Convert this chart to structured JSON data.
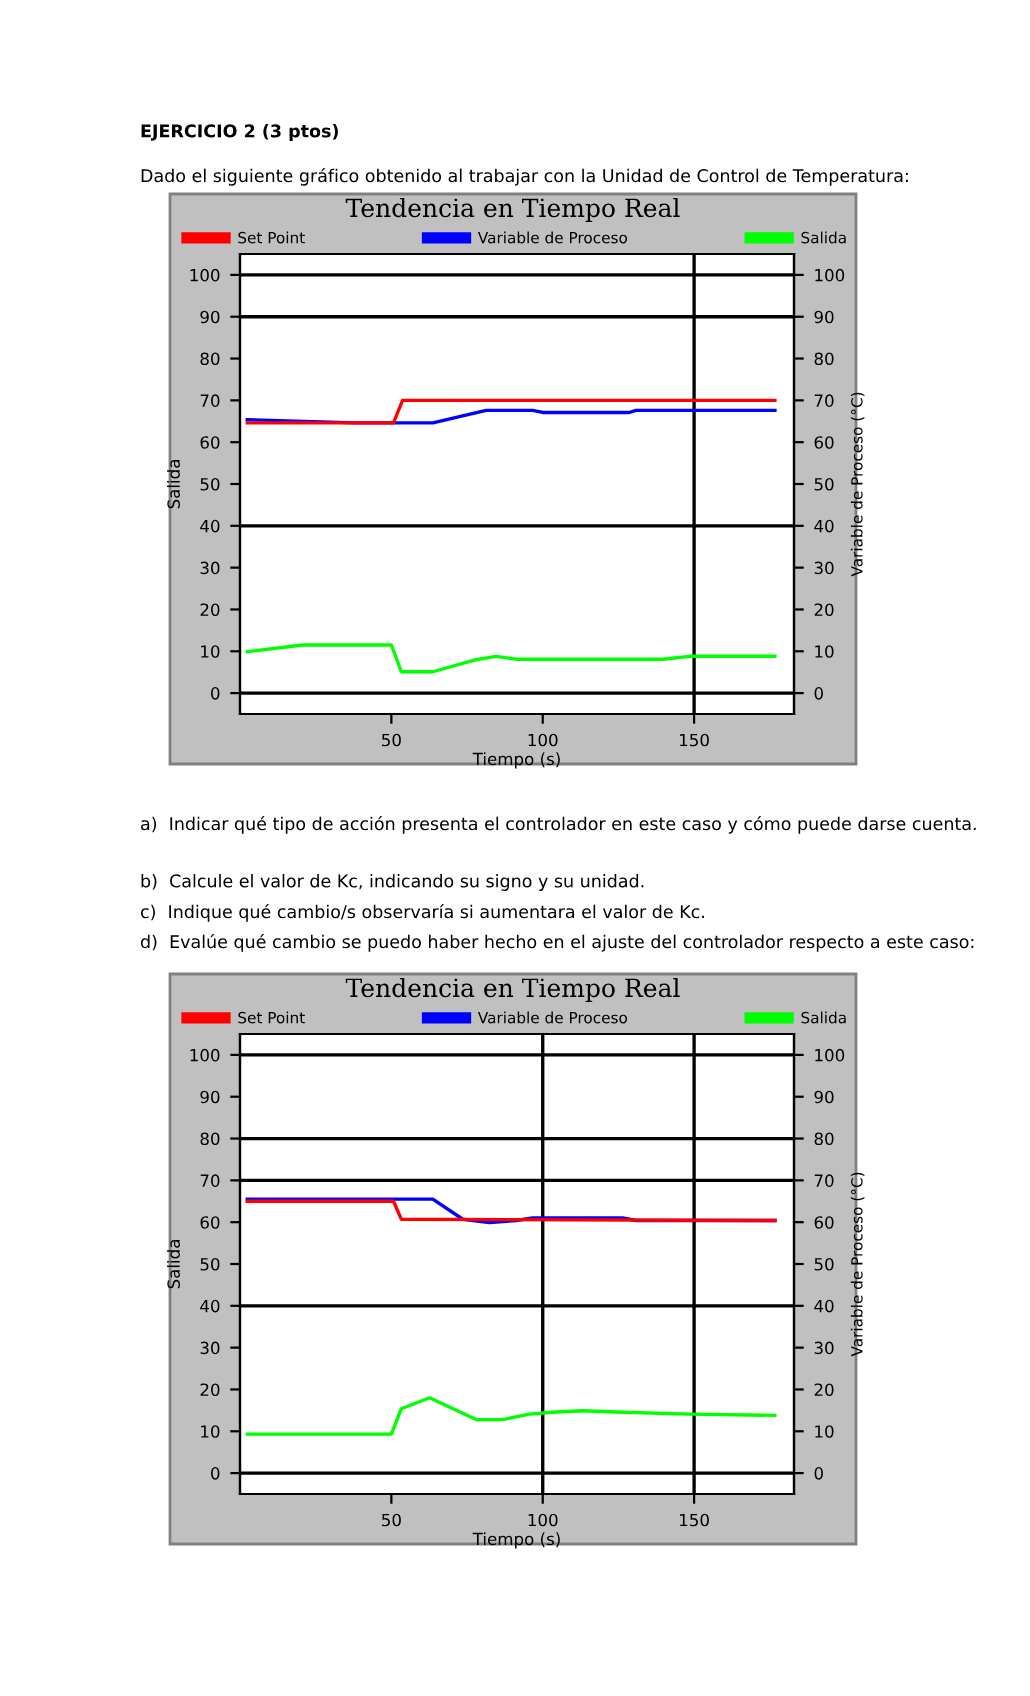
{
  "chart_data": [
    {
      "type": "line",
      "title": "Tendencia en Tiempo Real",
      "xlabel": "Tiempo (s)",
      "ylabel": "Salida",
      "y2label": "Variable de Proceso (°C)",
      "annotations": [
        "EJERCICIO 2 (3 ptos)",
        "Dado el siguiente gráfico obtenido al trabajar con la Unidad de Control de Temperatura:",
        "a)  Indicar qué tipo de acción presenta el controlador en este caso y cómo puede darse cuenta.",
        "b)  Calcule el valor de Kc, indicando su signo y su unidad.",
        "c)  Indique qué cambio/s observaría si aumentara el valor de Kc.",
        "d)  Evalúe qué cambio se puedo haber hecho en el ajuste del controlador respecto a este caso:"
      ],
      "xlim": [
        0,
        183
      ],
      "xticks": [
        50,
        100,
        150
      ],
      "ylim": [
        -5,
        105
      ],
      "yticks": [
        0,
        10,
        20,
        30,
        40,
        50,
        60,
        70,
        80,
        90,
        100
      ],
      "y2lim": [
        -5,
        105
      ],
      "y2ticks": [
        0,
        10,
        20,
        30,
        40,
        50,
        60,
        70,
        80,
        90,
        100
      ],
      "grid": false,
      "legend": "top",
      "marker": "none",
      "line_style": "solid",
      "ref_lines": [
        {
          "axis": "y",
          "value": 100,
          "color": "#000000"
        },
        {
          "axis": "y",
          "value": 90,
          "color": "#000000"
        },
        {
          "axis": "y",
          "value": 40,
          "color": "#000000"
        },
        {
          "axis": "y",
          "value": 0,
          "color": "#000000"
        },
        {
          "axis": "x",
          "value": 150,
          "color": "#000000"
        }
      ],
      "series": [
        {
          "name": "Set Point",
          "color": "#ff0000",
          "x": [
            2.4,
            50.7,
            53.7,
            176.7
          ],
          "values": [
            64.6,
            64.6,
            70,
            70
          ]
        },
        {
          "name": "Variable de Proceso",
          "color": "#0000ff",
          "x": [
            2.4,
            38.3,
            63.7,
            81.3,
            96.7,
            100,
            128.6,
            130.8,
            176.7
          ],
          "values": [
            65.4,
            64.6,
            64.6,
            67.6,
            67.6,
            67.1,
            67.1,
            67.6,
            67.6
          ]
        },
        {
          "name": "Salida",
          "color": "#00ff00",
          "x": [
            2.4,
            20.7,
            50,
            53.3,
            63.7,
            78,
            84.6,
            91.2,
            139.6,
            148.5,
            176.7
          ],
          "values": [
            9.9,
            11.5,
            11.5,
            5.1,
            5.1,
            8.0,
            8.8,
            8.1,
            8.1,
            8.8,
            8.8
          ]
        }
      ]
    },
    {
      "type": "line",
      "title": "Tendencia en Tiempo Real",
      "xlabel": "Tiempo (s)",
      "ylabel": "Salida",
      "y2label": "Variable de Proceso (°C)",
      "xlim": [
        0,
        183
      ],
      "xticks": [
        50,
        100,
        150
      ],
      "ylim": [
        -5,
        105
      ],
      "yticks": [
        0,
        10,
        20,
        30,
        40,
        50,
        60,
        70,
        80,
        90,
        100
      ],
      "y2lim": [
        -5,
        105
      ],
      "y2ticks": [
        0,
        10,
        20,
        30,
        40,
        50,
        60,
        70,
        80,
        90,
        100
      ],
      "grid": false,
      "legend": "top",
      "marker": "none",
      "line_style": "solid",
      "ref_lines": [
        {
          "axis": "y",
          "value": 100,
          "color": "#000000"
        },
        {
          "axis": "y",
          "value": 80,
          "color": "#000000"
        },
        {
          "axis": "y",
          "value": 70,
          "color": "#000000"
        },
        {
          "axis": "y",
          "value": 40,
          "color": "#000000"
        },
        {
          "axis": "y",
          "value": 0,
          "color": "#000000"
        },
        {
          "axis": "x",
          "value": 100,
          "color": "#000000"
        },
        {
          "axis": "x",
          "value": 150,
          "color": "#000000"
        }
      ],
      "series": [
        {
          "name": "Set Point",
          "color": "#ff0000",
          "x": [
            2.4,
            50.7,
            53.3,
            176.7
          ],
          "values": [
            65.0,
            65.0,
            60.7,
            60.4
          ]
        },
        {
          "name": "Variable de Proceso",
          "color": "#0000ff",
          "x": [
            2.4,
            63.7,
            73.6,
            82.4,
            91.2,
            96.7,
            126.4,
            130.8,
            176.7
          ],
          "values": [
            65.5,
            65.5,
            60.7,
            59.9,
            60.4,
            61.0,
            61.0,
            60.4,
            60.4
          ]
        },
        {
          "name": "Salida",
          "color": "#00ff00",
          "x": [
            2.4,
            50,
            53.3,
            62.6,
            78,
            86.8,
            95.6,
            104.4,
            113.2,
            124.2,
            148.5,
            176.7
          ],
          "values": [
            9.3,
            9.3,
            15.4,
            18.0,
            12.8,
            12.8,
            14.1,
            14.6,
            14.9,
            14.6,
            14.1,
            13.8
          ]
        }
      ]
    }
  ]
}
